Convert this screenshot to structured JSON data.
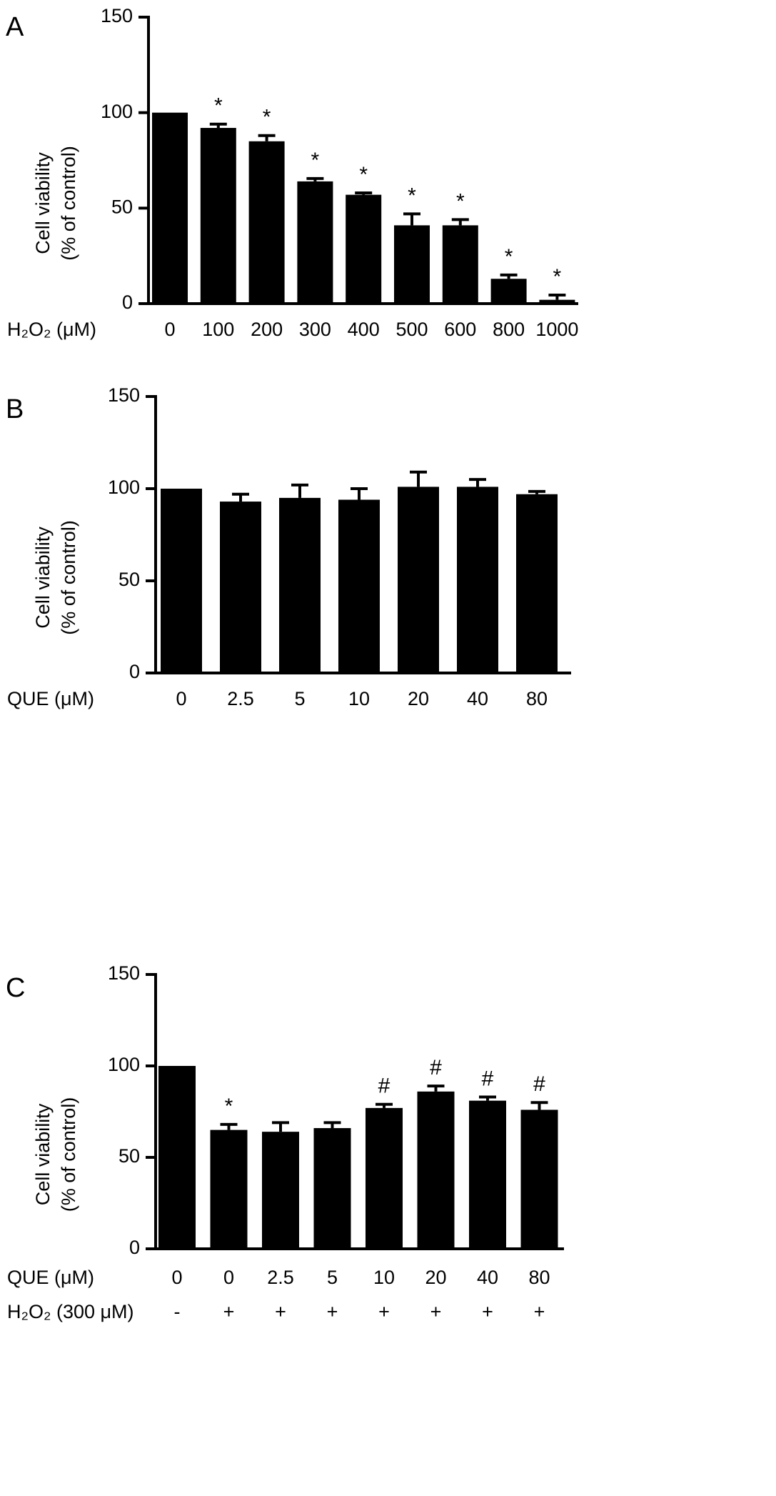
{
  "chart_data": [
    {
      "type": "bar",
      "panel": "A",
      "ylabel": [
        "Cell viability",
        "(% of control)"
      ],
      "x_label": "H₂O₂ (μM)",
      "categories": [
        "0",
        "100",
        "200",
        "300",
        "400",
        "500",
        "600",
        "800",
        "1000"
      ],
      "values": [
        100,
        92,
        85,
        64,
        57,
        41,
        41,
        13,
        2
      ],
      "errors": [
        null,
        2,
        3,
        1.5,
        1,
        6,
        3,
        2,
        2.5
      ],
      "annotations": [
        null,
        "*",
        "*",
        "*",
        "*",
        "*",
        "*",
        "*",
        "*"
      ],
      "color": "#000000",
      "ylim": [
        0,
        150
      ],
      "yticks": [
        0,
        50,
        100,
        150
      ]
    },
    {
      "type": "bar",
      "panel": "B",
      "ylabel": [
        "Cell viability",
        "(% of control)"
      ],
      "x_label": "QUE (μM)",
      "categories": [
        "0",
        "2.5",
        "5",
        "10",
        "20",
        "40",
        "80"
      ],
      "values": [
        100,
        93,
        95,
        94,
        101,
        101,
        97
      ],
      "errors": [
        null,
        4,
        7,
        6,
        8,
        4,
        1.5
      ],
      "color": "#000000",
      "ylim": [
        0,
        150
      ],
      "yticks": [
        0,
        50,
        100,
        150
      ]
    },
    {
      "type": "bar",
      "panel": "C",
      "ylabel": [
        "Cell viability",
        "(% of control)"
      ],
      "x_label": "QUE (μM)",
      "categories": [
        "0",
        "0",
        "2.5",
        "5",
        "10",
        "20",
        "40",
        "80"
      ],
      "x_label2": "H₂O₂ (300 μM)",
      "categories2": [
        "-",
        "+",
        "+",
        "+",
        "+",
        "+",
        "+",
        "+"
      ],
      "values": [
        100,
        65,
        64,
        66,
        77,
        86,
        81,
        76
      ],
      "errors": [
        null,
        3,
        5,
        3,
        2,
        3,
        2,
        4
      ],
      "annotations": [
        null,
        "*",
        null,
        null,
        "#",
        "#",
        "#",
        "#"
      ],
      "color": "#000000",
      "ylim": [
        0,
        150
      ],
      "yticks": [
        0,
        50,
        100,
        150
      ]
    }
  ]
}
